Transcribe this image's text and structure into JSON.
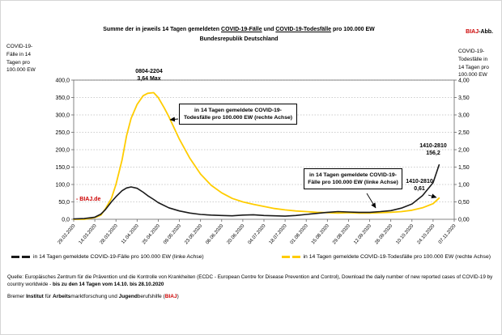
{
  "header": {
    "title_prefix": "Summe der in jeweils 14 Tagen gemeldeten ",
    "title_u1": "COVID-19-Fälle",
    "title_mid": " und ",
    "title_u2": "COVID-19-Todesfälle",
    "title_suffix": " pro 100.000 EW",
    "subtitle": "Bundesrepublik Deutschland",
    "brand_red": "BIAJ",
    "brand_black": "-Abb."
  },
  "axes": {
    "left_label": "COVID-19-\nFälle in 14\nTagen pro\n100.000 EW",
    "right_label": "COVID-19-\nTodesfälle in\n14 Tagen pro\n100.000 EW"
  },
  "annotations": {
    "peak_period": "0804-2204",
    "peak_value": "3,64 Max",
    "deaths_box": "in 14 Tagen gemeldete COVID-19-Todesfälle pro 100.000 EW (rechte Achse)",
    "cases_box": "in 14 Tagen gemeldete COVID-19-Fälle pro 100.000 EW (linke Achse)",
    "cases_end_period": "1410-2810",
    "cases_end_value": "156,2",
    "deaths_end_period": "1410-2810",
    "deaths_end_value": "0,61",
    "watermark": "- BIAJ.de"
  },
  "legend": [
    {
      "label": "in 14 Tagen gemeldete COVID-19-Fälle pro 100.000 EW (linke Achse)"
    },
    {
      "label": "in 14 Tagen gemeldete COVID-19-Todesfälle pro 100.000 EW (rechte Achse)"
    }
  ],
  "footer": {
    "source_text": "Quelle: Europäisches Zentrum für die Prävention und die Kontrolle von Krankheiten (ECDC - European Centre for Disease Prevention and Control), Download the daily number of new reported cases of COVID-19 by country worldwide - ",
    "source_bold": "bis zu den 14 Tagen vom 14.10. bis 28.10.2020",
    "institute_1": "Bremer ",
    "institute_b1": "Institut",
    "institute_2": " für ",
    "institute_b2": "Arbeits",
    "institute_3": "marktforschung und ",
    "institute_b3": "Jugend",
    "institute_4": "berufshilfe (",
    "institute_red": "BIAJ",
    "institute_5": ")"
  },
  "colors": {
    "cases_line": "#1a1a1a",
    "deaths_line": "#ffcc00",
    "accent_red": "#cc0000"
  },
  "chart_data": {
    "type": "line",
    "title": "Summe der in jeweils 14 Tagen gemeldeten COVID-19-Fälle und COVID-19-Todesfälle pro 100.000 EW - Bundesrepublik Deutschland",
    "x_axis": {
      "range_days": [
        0,
        252
      ],
      "tick_labels": [
        "29.02.2020",
        "14.03.2020",
        "28.03.2020",
        "11.04.2020",
        "25.04.2020",
        "09.05.2020",
        "23.05.2020",
        "06.06.2020",
        "20.06.2020",
        "04.07.2020",
        "18.07.2020",
        "01.08.2020",
        "15.08.2020",
        "29.08.2020",
        "12.09.2020",
        "26.09.2020",
        "10.10.2020",
        "24.10.2020",
        "07.11.2020"
      ]
    },
    "y_left": {
      "label": "COVID-19-Fälle in 14 Tagen pro 100.000 EW",
      "min": 0,
      "max": 400,
      "step": 50,
      "tick_labels": [
        "400,0",
        "350,0",
        "300,0",
        "250,0",
        "200,0",
        "150,0",
        "100,0",
        "50,0",
        "0,0"
      ]
    },
    "y_right": {
      "label": "COVID-19-Todesfälle in 14 Tagen pro 100.000 EW",
      "min": 0,
      "max": 4,
      "step": 0.5,
      "tick_labels": [
        "4,00",
        "3,50",
        "3,00",
        "2,50",
        "2,00",
        "1,50",
        "1,00",
        "0,50",
        "0,00"
      ]
    },
    "series": [
      {
        "name": "in 14 Tagen gemeldete COVID-19-Fälle pro 100.000 EW (linke Achse)",
        "axis": "left",
        "color": "#1a1a1a",
        "max_annotation": {
          "period": "1410-2810",
          "value": 156.2
        },
        "points": [
          [
            0,
            1
          ],
          [
            7,
            2
          ],
          [
            14,
            6
          ],
          [
            18,
            15
          ],
          [
            21,
            28
          ],
          [
            25,
            50
          ],
          [
            28,
            65
          ],
          [
            32,
            82
          ],
          [
            35,
            90
          ],
          [
            38,
            93
          ],
          [
            42,
            89
          ],
          [
            46,
            78
          ],
          [
            49,
            68
          ],
          [
            53,
            57
          ],
          [
            56,
            48
          ],
          [
            63,
            33
          ],
          [
            70,
            24
          ],
          [
            77,
            18
          ],
          [
            84,
            14
          ],
          [
            91,
            12
          ],
          [
            98,
            11
          ],
          [
            105,
            10
          ],
          [
            112,
            12
          ],
          [
            119,
            13
          ],
          [
            126,
            11
          ],
          [
            133,
            10
          ],
          [
            140,
            9
          ],
          [
            147,
            11
          ],
          [
            154,
            14
          ],
          [
            161,
            17
          ],
          [
            168,
            20
          ],
          [
            175,
            22
          ],
          [
            182,
            21
          ],
          [
            189,
            20
          ],
          [
            196,
            20
          ],
          [
            203,
            22
          ],
          [
            210,
            25
          ],
          [
            217,
            32
          ],
          [
            224,
            44
          ],
          [
            231,
            68
          ],
          [
            238,
            105
          ],
          [
            242,
            156.2
          ]
        ]
      },
      {
        "name": "in 14 Tagen gemeldete COVID-19-Todesfälle pro 100.000 EW (rechte Achse)",
        "axis": "right",
        "color": "#ffcc00",
        "max_annotation": {
          "period": "0804-2204",
          "value": 3.64
        },
        "points": [
          [
            0,
            0
          ],
          [
            7,
            0
          ],
          [
            14,
            0.05
          ],
          [
            18,
            0.12
          ],
          [
            21,
            0.3
          ],
          [
            25,
            0.6
          ],
          [
            28,
            1.0
          ],
          [
            32,
            1.7
          ],
          [
            35,
            2.4
          ],
          [
            38,
            2.9
          ],
          [
            42,
            3.3
          ],
          [
            46,
            3.55
          ],
          [
            49,
            3.62
          ],
          [
            53,
            3.64
          ],
          [
            56,
            3.5
          ],
          [
            60,
            3.2
          ],
          [
            63,
            2.95
          ],
          [
            70,
            2.3
          ],
          [
            77,
            1.75
          ],
          [
            84,
            1.3
          ],
          [
            91,
            0.98
          ],
          [
            98,
            0.76
          ],
          [
            105,
            0.6
          ],
          [
            112,
            0.5
          ],
          [
            119,
            0.43
          ],
          [
            126,
            0.37
          ],
          [
            133,
            0.31
          ],
          [
            140,
            0.27
          ],
          [
            147,
            0.24
          ],
          [
            154,
            0.22
          ],
          [
            161,
            0.2
          ],
          [
            168,
            0.19
          ],
          [
            175,
            0.18
          ],
          [
            182,
            0.19
          ],
          [
            189,
            0.18
          ],
          [
            196,
            0.18
          ],
          [
            203,
            0.19
          ],
          [
            210,
            0.2
          ],
          [
            217,
            0.22
          ],
          [
            224,
            0.26
          ],
          [
            231,
            0.33
          ],
          [
            238,
            0.45
          ],
          [
            242,
            0.61
          ]
        ]
      }
    ]
  }
}
